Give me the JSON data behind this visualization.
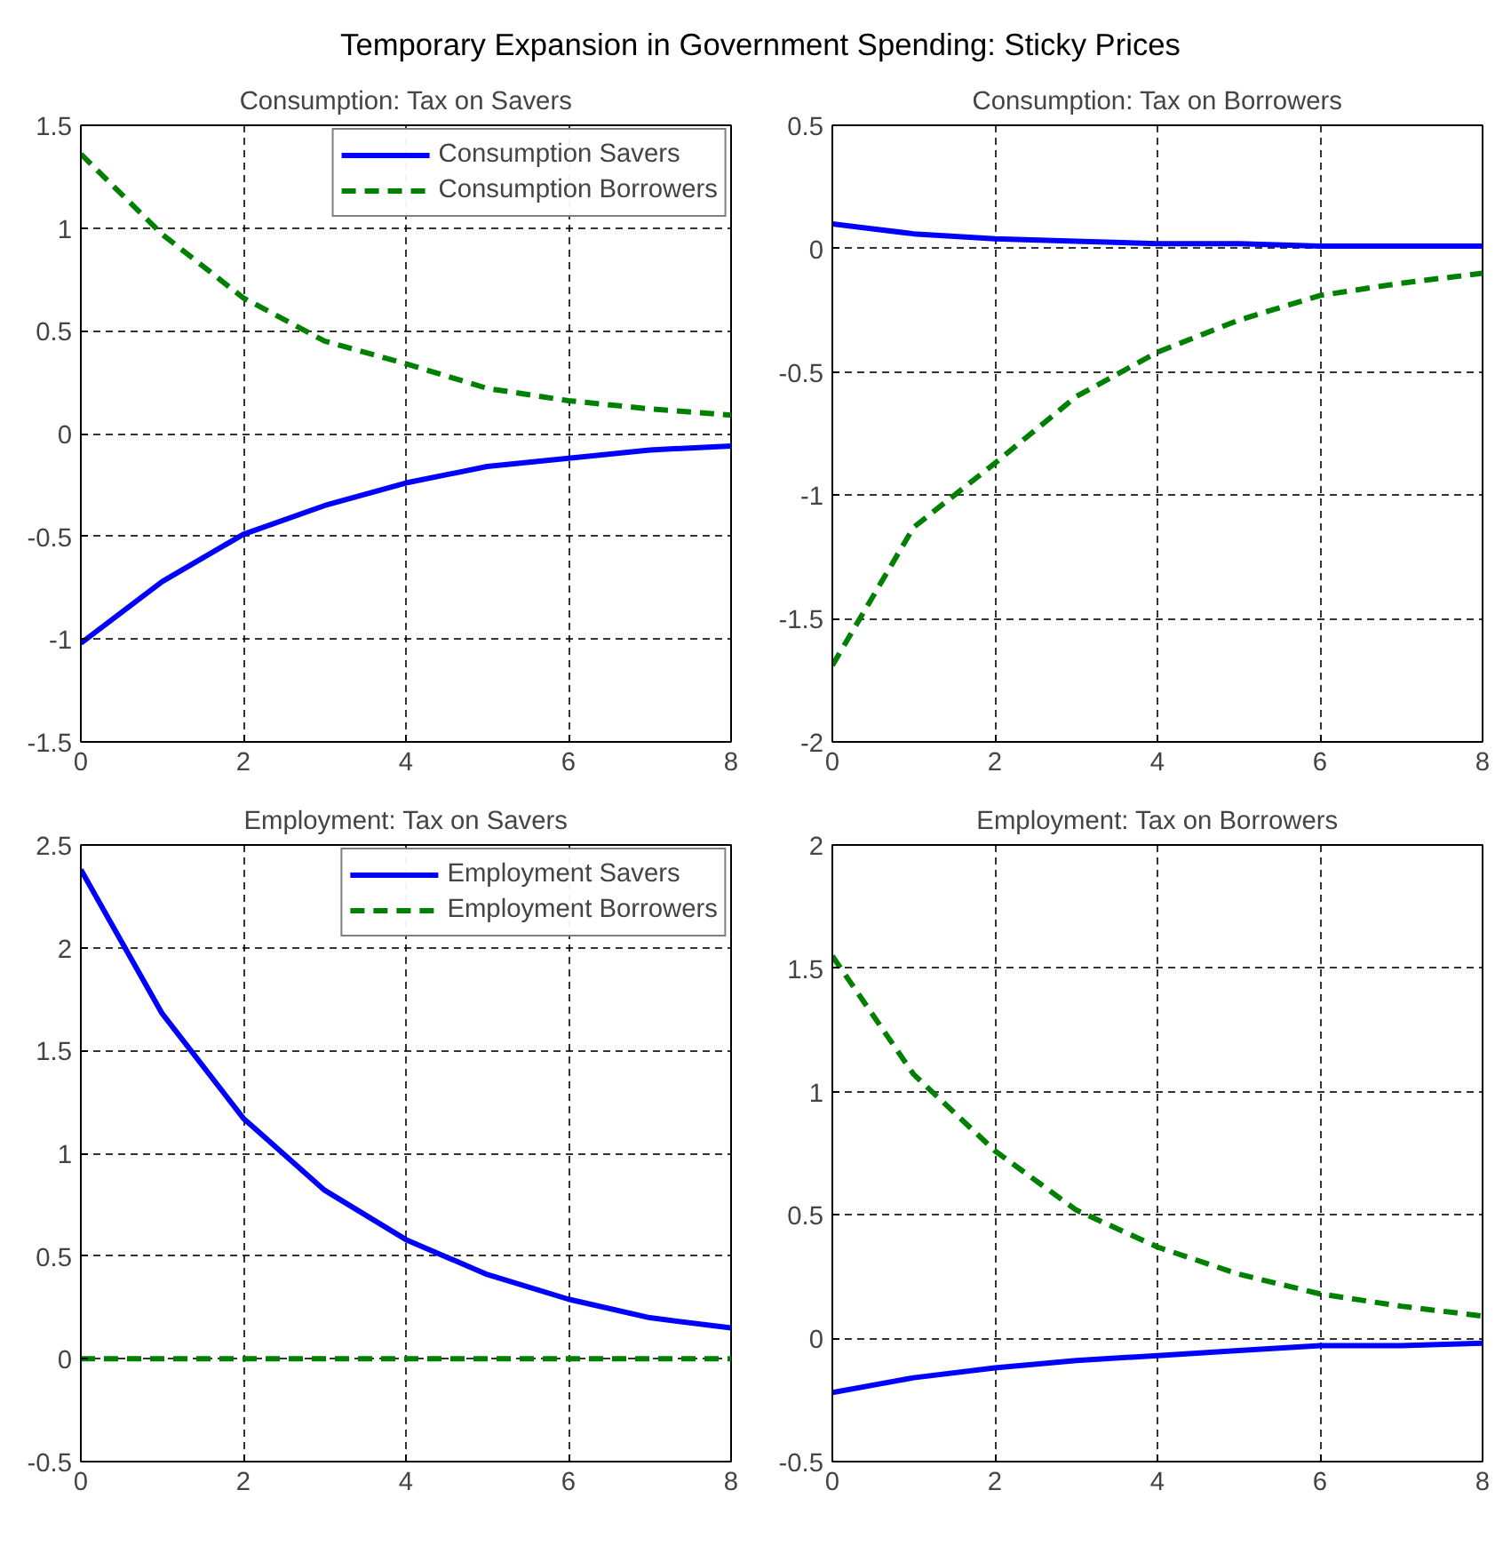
{
  "chart_data": [
    {
      "type": "line",
      "title": "Consumption: Tax on Savers",
      "annotations": [
        "Temporary Expansion in Government Spending: Sticky Prices"
      ],
      "x": [
        0,
        1,
        2,
        3,
        4,
        5,
        6,
        7,
        8
      ],
      "xlim": [
        0,
        8
      ],
      "xticks": [
        0,
        2,
        4,
        6,
        8
      ],
      "ylim": [
        -1.5,
        1.5
      ],
      "yticks": [
        -1.5,
        -1,
        -0.5,
        0,
        0.5,
        1,
        1.5
      ],
      "grid": true,
      "legend": "top right",
      "series": [
        {
          "name": "Consumption Savers",
          "color": "#0000ff",
          "line_style": "solid",
          "values": [
            -1.02,
            -0.72,
            -0.49,
            -0.35,
            -0.24,
            -0.16,
            -0.12,
            -0.08,
            -0.06
          ]
        },
        {
          "name": "Consumption Borrowers",
          "color": "#008000",
          "line_style": "dashed",
          "values": [
            1.36,
            0.97,
            0.66,
            0.45,
            0.34,
            0.22,
            0.16,
            0.12,
            0.09
          ]
        }
      ]
    },
    {
      "type": "line",
      "title": "Consumption: Tax on Borrowers",
      "x": [
        0,
        1,
        2,
        3,
        4,
        5,
        6,
        7,
        8
      ],
      "xlim": [
        0,
        8
      ],
      "xticks": [
        0,
        2,
        4,
        6,
        8
      ],
      "ylim": [
        -2,
        0.5
      ],
      "yticks": [
        -2,
        -1.5,
        -1,
        -0.5,
        0,
        0.5
      ],
      "grid": true,
      "series": [
        {
          "color": "#0000ff",
          "line_style": "solid",
          "values": [
            0.1,
            0.06,
            0.04,
            0.03,
            0.02,
            0.02,
            0.01,
            0.01,
            0.01
          ]
        },
        {
          "color": "#008000",
          "line_style": "dashed",
          "values": [
            -1.69,
            -1.13,
            -0.87,
            -0.6,
            -0.42,
            -0.29,
            -0.19,
            -0.14,
            -0.1
          ]
        }
      ]
    },
    {
      "type": "line",
      "title": "Employment: Tax on Savers",
      "x": [
        0,
        1,
        2,
        3,
        4,
        5,
        6,
        7,
        8
      ],
      "xlim": [
        0,
        8
      ],
      "xticks": [
        0,
        2,
        4,
        6,
        8
      ],
      "ylim": [
        -0.5,
        2.5
      ],
      "yticks": [
        -0.5,
        0,
        0.5,
        1,
        1.5,
        2,
        2.5
      ],
      "grid": true,
      "legend": "top right",
      "series": [
        {
          "name": "Employment Savers",
          "color": "#0000ff",
          "line_style": "solid",
          "values": [
            2.38,
            1.68,
            1.17,
            0.82,
            0.58,
            0.41,
            0.29,
            0.2,
            0.15
          ]
        },
        {
          "name": "Employment Borrowers",
          "color": "#008000",
          "line_style": "dashed",
          "values": [
            0,
            0,
            0,
            0,
            0,
            0,
            0,
            0,
            0
          ]
        }
      ]
    },
    {
      "type": "line",
      "title": "Employment: Tax on Borrowers",
      "x": [
        0,
        1,
        2,
        3,
        4,
        5,
        6,
        7,
        8
      ],
      "xlim": [
        0,
        8
      ],
      "xticks": [
        0,
        2,
        4,
        6,
        8
      ],
      "ylim": [
        -0.5,
        2
      ],
      "yticks": [
        -0.5,
        0,
        0.5,
        1,
        1.5,
        2
      ],
      "grid": true,
      "series": [
        {
          "color": "#0000ff",
          "line_style": "solid",
          "values": [
            -0.22,
            -0.16,
            -0.12,
            -0.09,
            -0.07,
            -0.05,
            -0.03,
            -0.03,
            -0.02
          ]
        },
        {
          "color": "#008000",
          "line_style": "dashed",
          "values": [
            1.55,
            1.07,
            0.76,
            0.52,
            0.37,
            0.26,
            0.18,
            0.13,
            0.09
          ]
        }
      ]
    }
  ]
}
